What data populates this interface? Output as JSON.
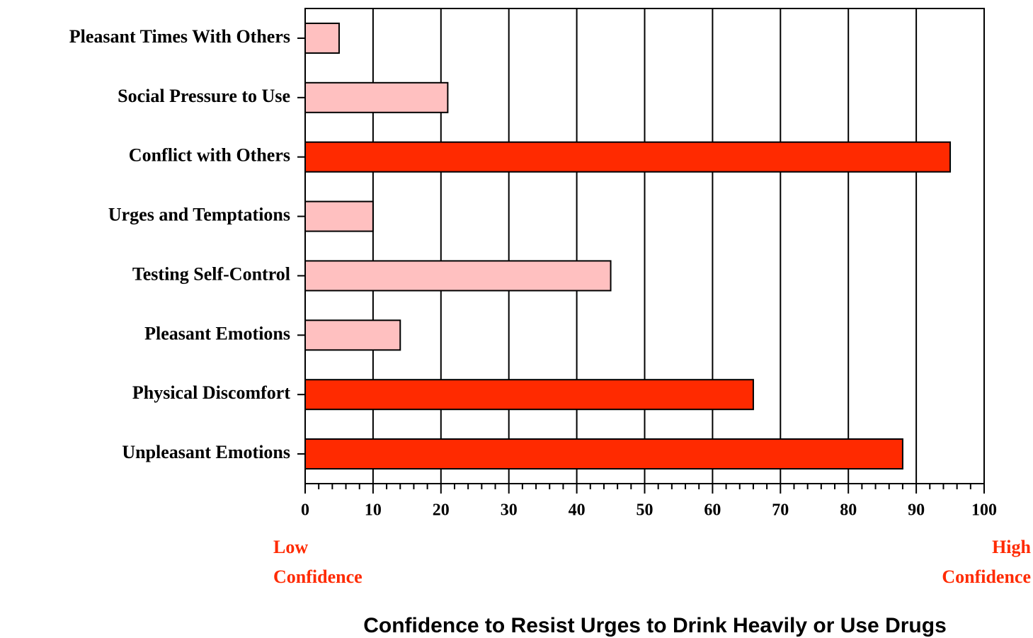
{
  "chart_data": {
    "type": "hbar",
    "categories": [
      "Pleasant Times With Others",
      "Social Pressure to Use",
      "Conflict with Others",
      "Urges and Temptations",
      "Testing Self-Control",
      "Pleasant Emotions",
      "Physical Discomfort",
      "Unpleasant Emotions"
    ],
    "values": [
      5,
      21,
      95,
      10,
      45,
      14,
      66,
      88
    ],
    "colors": [
      "#ffc0c0",
      "#ffc0c0",
      "#ff2a00",
      "#ffc0c0",
      "#ffc0c0",
      "#ffc0c0",
      "#ff2a00",
      "#ff2a00"
    ],
    "xlim": [
      0,
      100
    ],
    "xticks": [
      0,
      10,
      20,
      30,
      40,
      50,
      60,
      70,
      80,
      90,
      100
    ],
    "xminorticks": [
      2,
      4,
      6,
      8,
      12,
      14,
      16,
      18,
      22,
      24,
      26,
      28,
      32,
      34,
      36,
      38,
      42,
      44,
      46,
      48,
      52,
      54,
      56,
      58,
      62,
      64,
      66,
      68,
      72,
      74,
      76,
      78,
      82,
      84,
      86,
      88,
      92,
      94,
      96,
      98
    ],
    "grid": true,
    "x_label": "Confidence to Resist Urges to Drink Heavily or Use Drugs",
    "low_label": [
      "Low",
      "Confidence"
    ],
    "high_label": [
      "High",
      "Confidence"
    ]
  }
}
